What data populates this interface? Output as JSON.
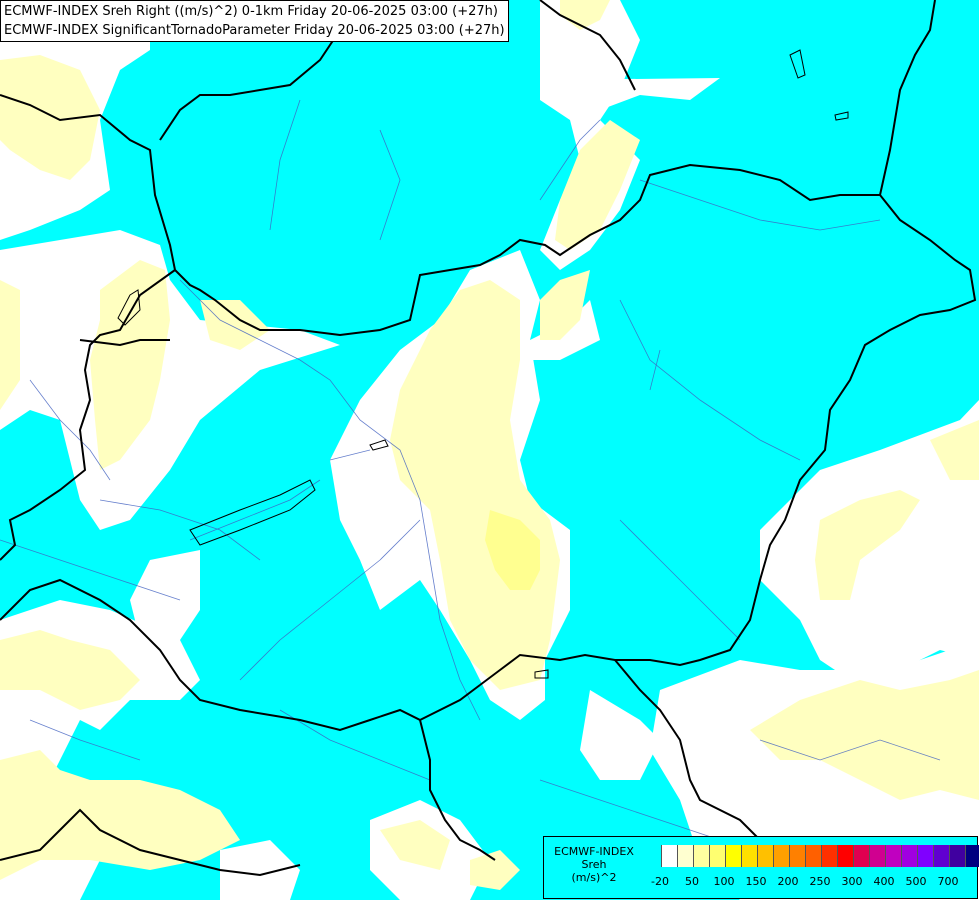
{
  "title": {
    "line1": "ECMWF-INDEX Sreh Right ((m/s)^2) 0-1km Friday 20-06-2025 03:00 (+27h)",
    "line2": "ECMWF-INDEX SignificantTornadoParameter Friday 20-06-2025 03:00 (+27h)"
  },
  "legend": {
    "line1": "ECMWF-INDEX",
    "line2": "Sreh",
    "line3": "(m/s)^2",
    "colors": [
      "#00ffff",
      "#ffffff",
      "#ffffd0",
      "#ffffa0",
      "#ffff70",
      "#ffff00",
      "#ffe000",
      "#ffc000",
      "#ffa000",
      "#ff8000",
      "#ff6000",
      "#ff3000",
      "#ff0000",
      "#e00050",
      "#d00090",
      "#c000c0",
      "#a000e0",
      "#8000ff",
      "#6000d0",
      "#4000a0",
      "#000080"
    ],
    "ticks": [
      "-20",
      "50",
      "100",
      "150",
      "200",
      "250",
      "300",
      "400",
      "500",
      "700"
    ]
  },
  "colors": {
    "cyan": "#00ffff",
    "white": "#ffffff",
    "pale_yellow": "#ffffc0",
    "yellow": "#ffff90"
  }
}
